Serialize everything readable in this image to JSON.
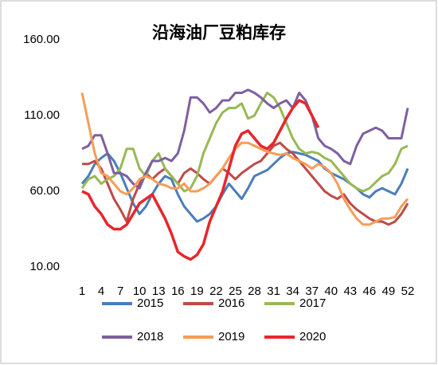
{
  "chart_data": {
    "type": "line",
    "title": "沿海油厂豆粕库存",
    "categories": [
      1,
      null,
      null,
      4,
      null,
      null,
      7,
      null,
      null,
      10,
      null,
      null,
      13,
      null,
      null,
      16,
      null,
      null,
      19,
      null,
      null,
      22,
      null,
      null,
      25,
      null,
      null,
      28,
      null,
      null,
      31,
      null,
      null,
      34,
      null,
      null,
      37,
      null,
      null,
      40,
      null,
      null,
      43,
      null,
      null,
      46,
      null,
      null,
      49,
      null,
      null,
      52
    ],
    "ylim": [
      10,
      160
    ],
    "yticks": [
      {
        "value": 10,
        "label": "10.00"
      },
      {
        "value": 60,
        "label": "60.00"
      },
      {
        "value": 110,
        "label": "110.00"
      },
      {
        "value": 160,
        "label": "160.00"
      }
    ],
    "grid": false,
    "series": [
      {
        "name": "2015",
        "color": "#4a7ebb",
        "values": [
          65,
          70,
          78,
          82,
          85,
          80,
          72,
          62,
          52,
          45,
          50,
          58,
          65,
          70,
          68,
          58,
          50,
          45,
          40,
          42,
          45,
          50,
          58,
          65,
          60,
          55,
          62,
          70,
          72,
          74,
          78,
          82,
          85,
          86,
          85,
          84,
          82,
          80,
          75,
          72,
          70,
          68,
          65,
          62,
          58,
          56,
          60,
          62,
          60,
          58,
          65,
          75
        ]
      },
      {
        "name": "2016",
        "color": "#be4b48",
        "values": [
          78,
          78,
          80,
          75,
          65,
          55,
          48,
          40,
          55,
          65,
          72,
          68,
          72,
          75,
          70,
          65,
          72,
          75,
          72,
          68,
          65,
          70,
          75,
          72,
          68,
          72,
          75,
          78,
          80,
          85,
          90,
          92,
          88,
          85,
          80,
          75,
          70,
          65,
          60,
          57,
          55,
          58,
          52,
          48,
          45,
          42,
          40,
          40,
          38,
          40,
          45,
          52
        ]
      },
      {
        "name": "2017",
        "color": "#98b954",
        "values": [
          62,
          68,
          70,
          65,
          68,
          70,
          75,
          88,
          88,
          75,
          70,
          80,
          85,
          75,
          70,
          65,
          60,
          62,
          70,
          85,
          95,
          105,
          112,
          115,
          115,
          118,
          108,
          110,
          118,
          125,
          122,
          115,
          105,
          95,
          88,
          85,
          86,
          85,
          82,
          80,
          75,
          70,
          65,
          62,
          60,
          62,
          66,
          70,
          72,
          78,
          88,
          90
        ]
      },
      {
        "name": "2018",
        "color": "#7d60a0",
        "values": [
          88,
          90,
          97,
          97,
          85,
          72,
          72,
          70,
          65,
          62,
          72,
          80,
          80,
          82,
          80,
          85,
          100,
          122,
          122,
          118,
          112,
          115,
          120,
          120,
          125,
          125,
          127,
          125,
          122,
          118,
          115,
          118,
          120,
          115,
          125,
          120,
          110,
          95,
          90,
          88,
          85,
          80,
          78,
          90,
          98,
          100,
          102,
          100,
          95,
          95,
          95,
          115
        ]
      },
      {
        "name": "2019",
        "color": "#f59d56",
        "values": [
          125,
          105,
          85,
          72,
          70,
          65,
          60,
          58,
          62,
          68,
          70,
          68,
          65,
          64,
          62,
          62,
          65,
          60,
          60,
          62,
          65,
          70,
          75,
          82,
          88,
          92,
          92,
          90,
          88,
          86,
          85,
          84,
          85,
          82,
          80,
          78,
          75,
          78,
          76,
          72,
          65,
          55,
          48,
          42,
          38,
          38,
          40,
          42,
          42,
          43,
          50,
          55
        ]
      },
      {
        "name": "2020",
        "color": "#e8262b",
        "values": [
          60,
          58,
          50,
          45,
          38,
          35,
          35,
          38,
          45,
          52,
          55,
          58,
          50,
          42,
          32,
          20,
          17,
          15,
          18,
          25,
          40,
          50,
          60,
          75,
          90,
          98,
          100,
          95,
          90,
          88,
          92,
          100,
          108,
          115,
          120,
          118,
          110,
          102,
          null,
          null,
          null,
          null,
          null,
          null,
          null,
          null,
          null,
          null,
          null,
          null,
          null,
          null
        ]
      }
    ]
  }
}
